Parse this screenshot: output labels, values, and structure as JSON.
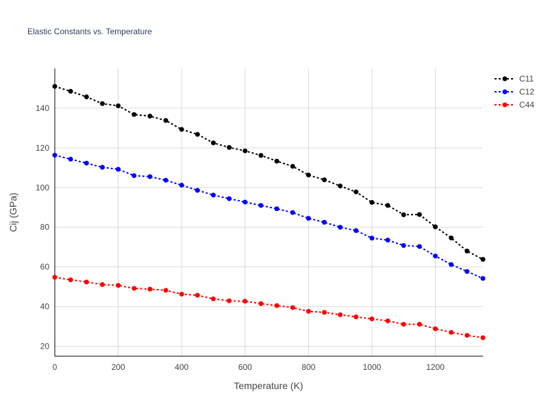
{
  "chart_data": {
    "type": "line",
    "title": "Elastic Constants vs. Temperature",
    "xlabel": "Temperature (K)",
    "ylabel": "Cij (GPa)",
    "xlim": [
      0,
      1350
    ],
    "ylim": [
      15,
      160
    ],
    "xticks": [
      0,
      200,
      400,
      600,
      800,
      1000,
      1200
    ],
    "yticks": [
      20,
      40,
      60,
      80,
      100,
      120,
      140
    ],
    "grid": true,
    "legend_position": "top-right",
    "x": [
      0,
      50,
      100,
      150,
      200,
      250,
      300,
      350,
      400,
      450,
      500,
      550,
      600,
      650,
      700,
      750,
      800,
      850,
      900,
      950,
      1000,
      1050,
      1100,
      1150,
      1200,
      1250,
      1300,
      1350
    ],
    "series": [
      {
        "name": "C11",
        "color": "#000000",
        "values": [
          151,
          148.5,
          145.7,
          142.3,
          141.2,
          136.8,
          136.0,
          133.8,
          129.3,
          126.8,
          122.5,
          120.2,
          118.5,
          116.2,
          113.3,
          110.7,
          106.3,
          103.9,
          100.8,
          97.8,
          92.5,
          91.0,
          86.3,
          86.4,
          80.2,
          74.6,
          68.0,
          63.8
        ]
      },
      {
        "name": "C12",
        "color": "#0000ff",
        "values": [
          116.3,
          114.3,
          112.3,
          110.2,
          109.2,
          106.0,
          105.5,
          103.7,
          101.2,
          98.6,
          96.2,
          94.4,
          92.7,
          91.0,
          89.3,
          87.4,
          84.5,
          82.5,
          80.0,
          78.3,
          74.5,
          73.5,
          70.8,
          70.3,
          65.5,
          61.2,
          57.7,
          54.2
        ]
      },
      {
        "name": "C44",
        "color": "#ff0000",
        "values": [
          54.8,
          53.5,
          52.4,
          51.1,
          50.7,
          49.2,
          48.8,
          48.2,
          46.3,
          45.7,
          43.9,
          42.9,
          42.7,
          41.5,
          40.5,
          39.5,
          37.6,
          37.1,
          35.9,
          34.8,
          33.8,
          32.8,
          31.1,
          31.1,
          28.8,
          27.0,
          25.5,
          24.3
        ]
      }
    ]
  }
}
